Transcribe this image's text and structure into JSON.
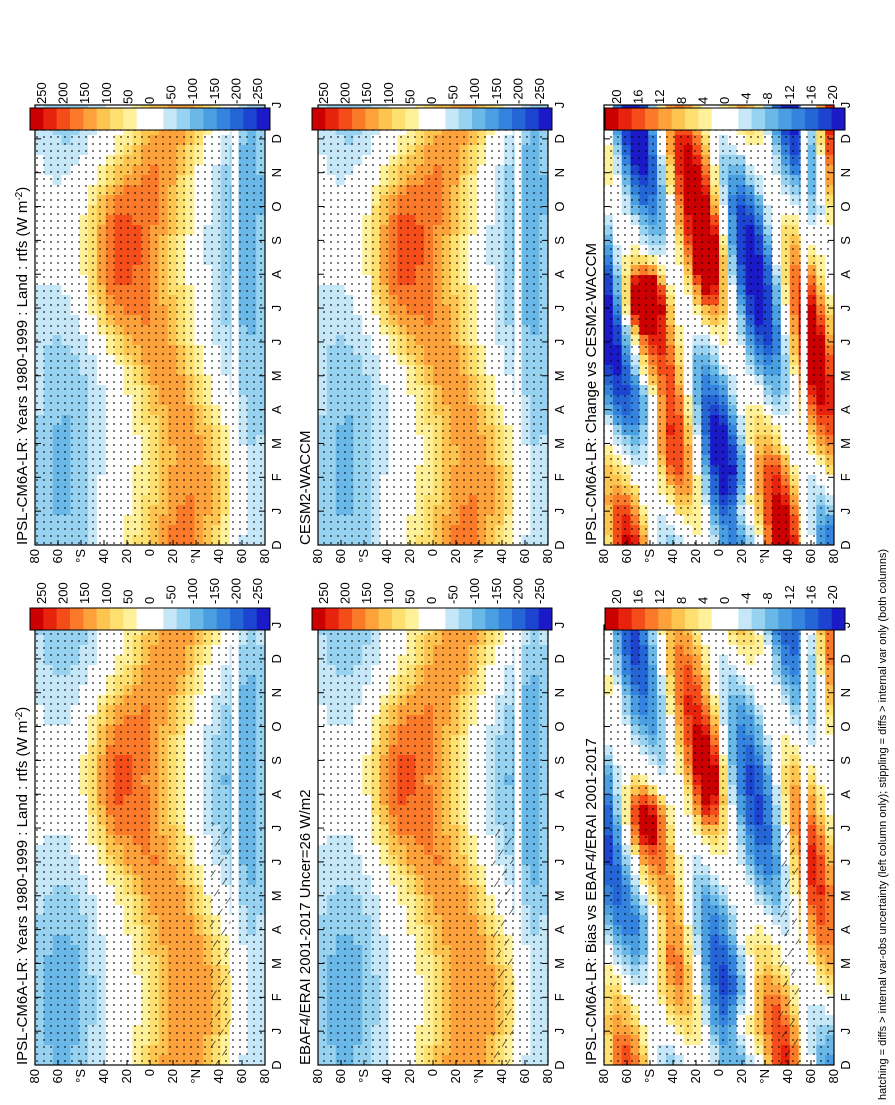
{
  "footnote": "hatching = diffs > internal var-obs uncertainty (left column only); stippling = diffs > internal var only (both columns)",
  "chart_data": [
    {
      "type": "heatmap",
      "id": "model-left",
      "title": "IPSL-CM6A-LR: Years 1980-1999 : Land : rtfs (W m",
      "title_sup": "-2",
      "title_end": ")",
      "months": [
        "D",
        "J",
        "F",
        "M",
        "A",
        "M",
        "J",
        "J",
        "A",
        "S",
        "O",
        "N",
        "D",
        "J"
      ],
      "lat_labels": [
        "80",
        "60",
        "40",
        "°N",
        "20",
        "0",
        "20",
        "40",
        "°S",
        "60",
        "80"
      ],
      "field": "rtfs",
      "kind": "clim",
      "hatching": true,
      "colorbar": [
        "250",
        "200",
        "150",
        "100",
        "50",
        "0",
        "-50",
        "-100",
        "-150",
        "-200",
        "-250"
      ]
    },
    {
      "type": "heatmap",
      "id": "model-right",
      "title": "IPSL-CM6A-LR: Years 1980-1999 : Land : rtfs (W m",
      "title_sup": "-2",
      "title_end": ")",
      "months": [
        "D",
        "J",
        "F",
        "M",
        "A",
        "M",
        "J",
        "J",
        "A",
        "S",
        "O",
        "N",
        "D",
        "J"
      ],
      "lat_labels": [
        "80",
        "60",
        "40",
        "°N",
        "20",
        "0",
        "20",
        "40",
        "°S",
        "60",
        "80"
      ],
      "field": "rtfs",
      "kind": "clim",
      "hatching": false,
      "colorbar": [
        "250",
        "200",
        "150",
        "100",
        "50",
        "0",
        "-50",
        "-100",
        "-150",
        "-200",
        "-250"
      ]
    },
    {
      "type": "heatmap",
      "id": "obs-left",
      "title": "EBAF4/ERAI 2001-2017 Uncer=26 W/m2",
      "title_sup": "",
      "title_end": "",
      "months": [
        "D",
        "J",
        "F",
        "M",
        "A",
        "M",
        "J",
        "J",
        "A",
        "S",
        "O",
        "N",
        "D",
        "J"
      ],
      "lat_labels": [
        "80",
        "60",
        "40",
        "°N",
        "20",
        "0",
        "20",
        "40",
        "°S",
        "60",
        "80"
      ],
      "field": "rtfs",
      "kind": "clim",
      "hatching": true,
      "colorbar": [
        "250",
        "200",
        "150",
        "100",
        "50",
        "0",
        "-50",
        "-100",
        "-150",
        "-200",
        "-250"
      ]
    },
    {
      "type": "heatmap",
      "id": "ref-right",
      "title": "CESM2-WACCM",
      "title_sup": "",
      "title_end": "",
      "months": [
        "D",
        "J",
        "F",
        "M",
        "A",
        "M",
        "J",
        "J",
        "A",
        "S",
        "O",
        "N",
        "D",
        "J"
      ],
      "lat_labels": [
        "80",
        "60",
        "40",
        "°N",
        "20",
        "0",
        "20",
        "40",
        "°S",
        "60",
        "80"
      ],
      "field": "rtfs",
      "kind": "clim",
      "hatching": false,
      "colorbar": [
        "250",
        "200",
        "150",
        "100",
        "50",
        "0",
        "-50",
        "-100",
        "-150",
        "-200",
        "-250"
      ]
    },
    {
      "type": "heatmap",
      "id": "bias-left",
      "title": "IPSL-CM6A-LR: Bias vs EBAF4/ERAI 2001-2017",
      "title_sup": "",
      "title_end": "",
      "months": [
        "D",
        "J",
        "F",
        "M",
        "A",
        "M",
        "J",
        "J",
        "A",
        "S",
        "O",
        "N",
        "D",
        "J"
      ],
      "lat_labels": [
        "80",
        "60",
        "40",
        "°N",
        "20",
        "0",
        "20",
        "40",
        "°S",
        "60",
        "80"
      ],
      "field": "rtfs",
      "kind": "diff",
      "hatching": true,
      "colorbar": [
        "20",
        "16",
        "12",
        "8",
        "4",
        "0",
        "-4",
        "-8",
        "-12",
        "-16",
        "-20"
      ]
    },
    {
      "type": "heatmap",
      "id": "change-right",
      "title": "IPSL-CM6A-LR: Change vs CESM2-WACCM",
      "title_sup": "",
      "title_end": "",
      "months": [
        "D",
        "J",
        "F",
        "M",
        "A",
        "M",
        "J",
        "J",
        "A",
        "S",
        "O",
        "N",
        "D",
        "J"
      ],
      "lat_labels": [
        "80",
        "60",
        "40",
        "°N",
        "20",
        "0",
        "20",
        "40",
        "°S",
        "60",
        "80"
      ],
      "field": "rtfs",
      "kind": "diff",
      "hatching": false,
      "colorbar": [
        "20",
        "16",
        "12",
        "8",
        "4",
        "0",
        "-4",
        "-8",
        "-12",
        "-16",
        "-20"
      ]
    }
  ],
  "colors": {
    "palette": [
      "#cc0000",
      "#e8230d",
      "#f44d1a",
      "#fb7a2a",
      "#fda23b",
      "#fdc450",
      "#fde070",
      "#fff09a",
      "#ffffff",
      "#ffffff",
      "#c6e7f7",
      "#98d2f1",
      "#6ab8e8",
      "#4a9fe2",
      "#3483de",
      "#2566d6",
      "#1d44d0",
      "#1a1ac8"
    ]
  }
}
